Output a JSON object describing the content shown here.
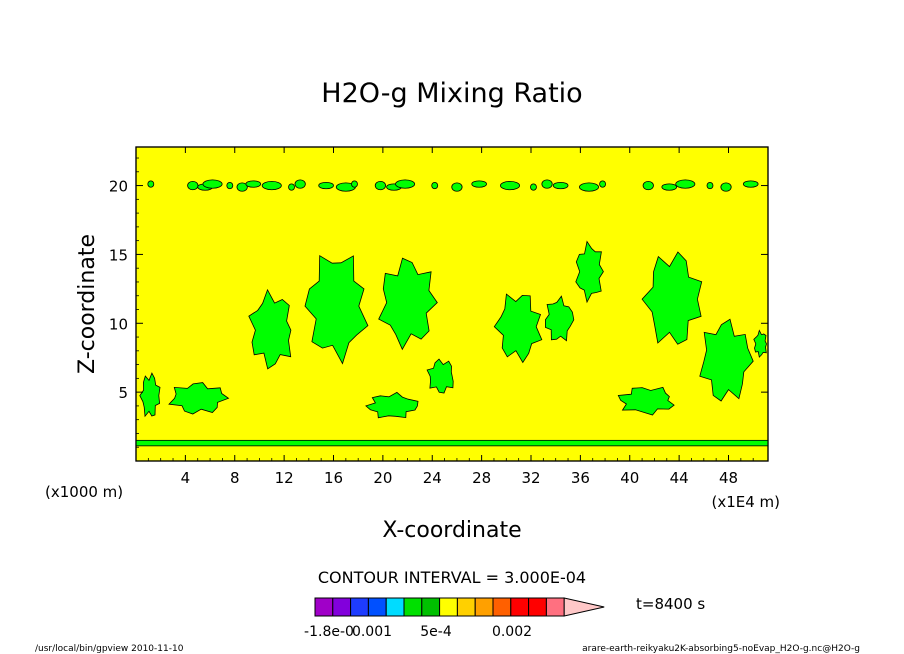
{
  "chart_data": {
    "type": "contour",
    "title": "H2O-g Mixing Ratio",
    "xlabel": "X-coordinate",
    "ylabel": "Z-coordinate",
    "x_unit": "(x1E4 m)",
    "y_unit": "(x1000 m)",
    "xlim": [
      0,
      51.2
    ],
    "ylim": [
      0,
      22.8
    ],
    "x_ticks": [
      4,
      8,
      12,
      16,
      20,
      24,
      28,
      32,
      36,
      40,
      44,
      48
    ],
    "y_ticks": [
      5,
      10,
      15,
      20
    ],
    "contour_interval_text": "CONTOUR INTERVAL = 3.000E-04",
    "time_text": "t=8400 s",
    "colorbar_labels": [
      "-1.8e-0",
      "0.001",
      "5e-4",
      "0.002"
    ],
    "colorbar_colors": [
      "#a000c8",
      "#8200dc",
      "#1e3cff",
      "#0050ff",
      "#00dcff",
      "#00e000",
      "#00c000",
      "#ffff00",
      "#ffd000",
      "#ffa000",
      "#ff6000",
      "#ff0000",
      "#ff0000",
      "#ff7080",
      "#ffc8c8"
    ],
    "background_level_color": "#ffff00",
    "feature_level_color": "#00ff00",
    "surface_layer_z": [
      1.1,
      1.5
    ],
    "features": [
      {
        "x": [
          0.3,
          2.0
        ],
        "z": [
          3.0,
          6.5
        ]
      },
      {
        "x": [
          2.5,
          7.5
        ],
        "z": [
          3.3,
          5.8
        ]
      },
      {
        "x": [
          9.0,
          13.0
        ],
        "z": [
          6.5,
          12.5
        ]
      },
      {
        "x": [
          13.5,
          19.0
        ],
        "z": [
          7.0,
          15.5
        ]
      },
      {
        "x": [
          18.5,
          23.0
        ],
        "z": [
          3.0,
          5.0
        ]
      },
      {
        "x": [
          19.5,
          24.5
        ],
        "z": [
          8.0,
          15.0
        ]
      },
      {
        "x": [
          23.5,
          26.0
        ],
        "z": [
          4.8,
          7.5
        ]
      },
      {
        "x": [
          29.0,
          33.0
        ],
        "z": [
          7.0,
          12.5
        ]
      },
      {
        "x": [
          33.0,
          35.5
        ],
        "z": [
          8.5,
          12.0
        ]
      },
      {
        "x": [
          35.5,
          38.0
        ],
        "z": [
          11.5,
          16.0
        ]
      },
      {
        "x": [
          38.8,
          44.0
        ],
        "z": [
          3.3,
          5.5
        ]
      },
      {
        "x": [
          41.0,
          46.0
        ],
        "z": [
          8.0,
          15.5
        ]
      },
      {
        "x": [
          45.5,
          50.0
        ],
        "z": [
          4.0,
          10.5
        ]
      },
      {
        "x": [
          50.0,
          51.2
        ],
        "z": [
          7.5,
          9.5
        ]
      }
    ],
    "upper_band_z": 20.0,
    "upper_band_x": [
      1.2,
      4.6,
      5.6,
      6.2,
      7.6,
      8.6,
      9.5,
      11.0,
      12.6,
      13.3,
      15.4,
      17.0,
      17.7,
      19.8,
      20.9,
      21.8,
      24.2,
      26.0,
      27.8,
      30.3,
      32.2,
      33.3,
      34.4,
      36.7,
      37.8,
      41.5,
      43.2,
      44.5,
      46.5,
      47.8,
      49.8
    ]
  },
  "footer": {
    "left": "/usr/local/bin/gpview  2010-11-10",
    "right": "arare-earth-reikyaku2K-absorbing5-noEvap_H2O-g.nc@H2O-g"
  }
}
